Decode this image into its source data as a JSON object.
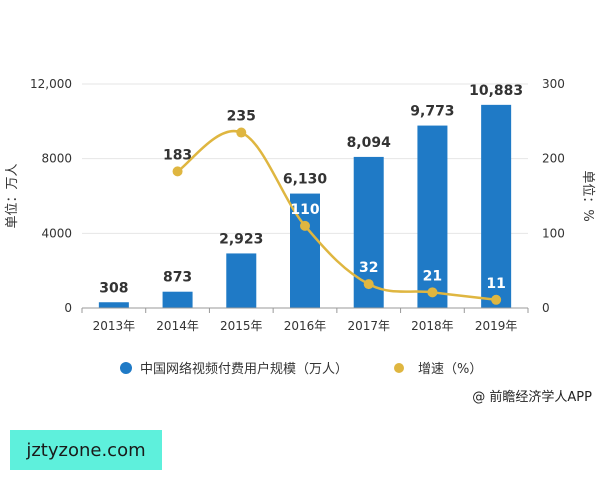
{
  "colors": {
    "bar": "#1f7ac6",
    "line": "#dfb640",
    "axis_text": "#333333",
    "grid": "#e6e6e6",
    "label": "#333333",
    "label_on_bar": "#ffffff"
  },
  "chart_data": {
    "type": "bar",
    "categories": [
      "2013年",
      "2014年",
      "2015年",
      "2016年",
      "2017年",
      "2018年",
      "2019年"
    ],
    "series": [
      {
        "name": "中国网络视频付费用户规模（万人）",
        "type": "bar",
        "axis": "left",
        "values": [
          308,
          873,
          2923,
          6130,
          8094,
          9773,
          10883
        ],
        "labels": [
          "308",
          "873",
          "2,923",
          "6,130",
          "8,094",
          "9,773",
          "10,883"
        ]
      },
      {
        "name": "增速（%）",
        "type": "line",
        "axis": "right",
        "values": [
          null,
          183,
          235,
          110,
          32,
          21,
          11
        ],
        "labels": [
          "",
          "183",
          "235",
          "110",
          "32",
          "21",
          "11"
        ]
      }
    ],
    "ylabel": "单位：万人",
    "y2label": "单位：%",
    "ylim": [
      0,
      12000
    ],
    "y2lim": [
      0,
      300
    ],
    "yticks": [
      0,
      4000,
      8000,
      12000
    ],
    "ytick_labels": [
      "0",
      "4000",
      "8000",
      "12,000"
    ],
    "y2ticks": [
      0,
      100,
      200,
      300
    ],
    "y2tick_labels": [
      "0",
      "100",
      "200",
      "300"
    ],
    "grid": true,
    "legend_position": "bottom"
  },
  "legend": {
    "bar_label": "中国网络视频付费用户规模（万人）",
    "line_label": "增速（%）"
  },
  "source": "@ 前瞻经济学人APP",
  "watermark": "jztyzone.com"
}
